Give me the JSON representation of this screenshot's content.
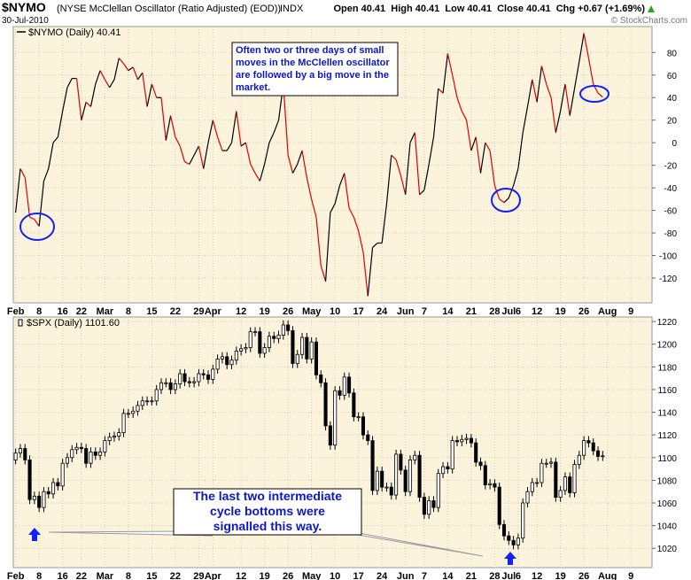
{
  "header": {
    "symbol": "$NYMO",
    "description": "(NYSE McClellan Oscillator (Ratio Adjusted) (EOD))",
    "exchange": "INDX",
    "date": "30-Jul-2010",
    "quote": "Open 40.41  High 40.41  Low 40.41  Close 40.41  Chg +0.67 (+1.69%)",
    "credit": "© StockCharts.com"
  },
  "chart_data": [
    {
      "type": "line",
      "legend": "top-left",
      "grid": true,
      "categories": [
        "Feb",
        null,
        null,
        null,
        null,
        "8",
        null,
        null,
        null,
        null,
        "16",
        null,
        null,
        null,
        "22",
        null,
        null,
        null,
        null,
        "Mar",
        null,
        null,
        null,
        null,
        "8",
        null,
        null,
        null,
        null,
        "15",
        null,
        null,
        null,
        null,
        "22",
        null,
        null,
        null,
        null,
        "29",
        null,
        null,
        "Apr",
        null,
        null,
        null,
        null,
        null,
        "12",
        null,
        null,
        null,
        null,
        "19",
        null,
        null,
        null,
        null,
        "26",
        null,
        null,
        null,
        null,
        "May",
        null,
        null,
        null,
        null,
        "10",
        null,
        null,
        null,
        null,
        "17",
        null,
        null,
        null,
        null,
        "24",
        null,
        null,
        null,
        null,
        "Jun",
        null,
        null,
        null,
        "7",
        null,
        null,
        null,
        null,
        "14",
        null,
        null,
        null,
        null,
        "21",
        null,
        null,
        null,
        null,
        "28",
        null,
        null,
        "Jul",
        null,
        "6",
        null,
        null,
        null,
        "12",
        null,
        null,
        null,
        null,
        "19",
        null,
        null,
        null,
        null,
        "26",
        null,
        null,
        null,
        null,
        "Aug",
        null,
        null,
        null,
        null,
        "9",
        null,
        null,
        null,
        null
      ],
      "series": [
        {
          "name": "$NYMO (Daily) 40.41",
          "up_color": "#000000",
          "down_color": "#e00000",
          "values": [
            -62,
            -23,
            -31,
            -66,
            -68,
            -74,
            -34,
            -23,
            0,
            5,
            28,
            49,
            57,
            57,
            20,
            36,
            32,
            52,
            64,
            56,
            49,
            56,
            75,
            70,
            64,
            67,
            56,
            62,
            32,
            52,
            40,
            40,
            2,
            24,
            5,
            -3,
            -17,
            -19,
            -11,
            -3,
            -23,
            0,
            20,
            5,
            -7,
            -7,
            0,
            28,
            -3,
            0,
            -19,
            -27,
            -34,
            -19,
            0,
            9,
            20,
            52,
            -11,
            -27,
            -19,
            -7,
            -31,
            -50,
            -66,
            -109,
            -123,
            -62,
            -54,
            -38,
            -27,
            -58,
            -66,
            -78,
            -97,
            -136,
            -93,
            -89,
            -89,
            -54,
            -11,
            -15,
            -29,
            -46,
            0,
            9,
            -46,
            -42,
            -19,
            5,
            48,
            44,
            79,
            60,
            40,
            28,
            20,
            -7,
            5,
            -27,
            0,
            -7,
            -38,
            -50,
            -53,
            -49,
            -38,
            -23,
            9,
            32,
            56,
            36,
            68,
            52,
            40,
            9,
            28,
            52,
            24,
            48,
            72,
            97,
            75,
            52,
            44,
            40.41,
            null,
            null,
            null,
            null,
            null,
            null,
            null,
            null,
            null,
            null
          ]
        }
      ],
      "ylim": [
        -142,
        103
      ],
      "yticks": [
        -120,
        -100,
        -80,
        -60,
        -40,
        -20,
        0,
        20,
        40,
        60,
        80
      ],
      "annotation": [
        "Often two or three days of small",
        "moves in the McClellen oscillator",
        "are followed by a big move in the",
        "market."
      ]
    },
    {
      "type": "candlestick",
      "legend": "top-left",
      "grid": true,
      "categories": [
        "Feb",
        null,
        null,
        null,
        null,
        "8",
        null,
        null,
        null,
        null,
        "16",
        null,
        null,
        null,
        "22",
        null,
        null,
        null,
        null,
        "Mar",
        null,
        null,
        null,
        null,
        "8",
        null,
        null,
        null,
        null,
        "15",
        null,
        null,
        null,
        null,
        "22",
        null,
        null,
        null,
        null,
        "29",
        null,
        null,
        "Apr",
        null,
        null,
        null,
        null,
        null,
        "12",
        null,
        null,
        null,
        null,
        "19",
        null,
        null,
        null,
        null,
        "26",
        null,
        null,
        null,
        null,
        "May",
        null,
        null,
        null,
        null,
        "10",
        null,
        null,
        null,
        null,
        "17",
        null,
        null,
        null,
        null,
        "24",
        null,
        null,
        null,
        null,
        "Jun",
        null,
        null,
        null,
        "7",
        null,
        null,
        null,
        null,
        "14",
        null,
        null,
        null,
        null,
        "21",
        null,
        null,
        null,
        null,
        "28",
        null,
        null,
        "Jul",
        null,
        "6",
        null,
        null,
        null,
        "12",
        null,
        null,
        null,
        null,
        "19",
        null,
        null,
        null,
        null,
        "26",
        null,
        null,
        null,
        null,
        "Aug",
        null,
        null,
        null,
        null,
        "9",
        null,
        null,
        null,
        null
      ],
      "name": "$SPX (Daily) 1101.60",
      "up_color": "#ffffff",
      "down_color": "#000000",
      "open": [
        1098,
        1104,
        1108,
        1098,
        1063,
        1066,
        1056,
        1070,
        1068,
        1078,
        1075,
        1095,
        1100,
        1107,
        1109,
        1108,
        1095,
        1105,
        1102,
        1105,
        1115,
        1118,
        1119,
        1122,
        1139,
        1139,
        1141,
        1146,
        1150,
        1150,
        1150,
        1160,
        1166,
        1166,
        1160,
        1165,
        1174,
        1167,
        1166,
        1167,
        1174,
        1173,
        1169,
        1178,
        1187,
        1189,
        1182,
        1186,
        1194,
        1196,
        1197,
        1211,
        1211,
        1192,
        1197,
        1207,
        1205,
        1208,
        1217,
        1212,
        1183,
        1191,
        1206,
        1187,
        1202,
        1173,
        1166,
        1128,
        1111,
        1159,
        1155,
        1171,
        1157,
        1136,
        1136,
        1120,
        1115,
        1071,
        1088,
        1074,
        1074,
        1067,
        1103,
        1089,
        1070,
        1098,
        1102,
        1065,
        1050,
        1062,
        1056,
        1086,
        1092,
        1090,
        1115,
        1114,
        1116,
        1117,
        1113,
        1096,
        1093,
        1076,
        1077,
        1074,
        1041,
        1031,
        1027,
        1023,
        1029,
        1060,
        1070,
        1078,
        1078,
        1095,
        1095,
        1096,
        1065,
        1071,
        1083,
        1069,
        1094,
        1102,
        1115,
        1113,
        1106,
        1101,
        null,
        null,
        null,
        null,
        null,
        null,
        null,
        null,
        null,
        null
      ],
      "high": [
        1108,
        1112,
        1112,
        1102,
        1070,
        1070,
        1074,
        1074,
        1082,
        1082,
        1099,
        1104,
        1111,
        1113,
        1113,
        1112,
        1109,
        1109,
        1109,
        1119,
        1122,
        1123,
        1126,
        1143,
        1143,
        1145,
        1150,
        1154,
        1154,
        1154,
        1164,
        1170,
        1170,
        1170,
        1169,
        1178,
        1178,
        1171,
        1171,
        1178,
        1178,
        1177,
        1182,
        1191,
        1193,
        1193,
        1190,
        1198,
        1200,
        1201,
        1215,
        1215,
        1215,
        1201,
        1211,
        1211,
        1212,
        1221,
        1221,
        1216,
        1195,
        1210,
        1210,
        1206,
        1206,
        1177,
        1170,
        1132,
        1163,
        1163,
        1175,
        1175,
        1161,
        1140,
        1140,
        1124,
        1119,
        1092,
        1092,
        1078,
        1078,
        1107,
        1107,
        1093,
        1102,
        1106,
        1106,
        1069,
        1066,
        1066,
        1090,
        1096,
        1096,
        1119,
        1119,
        1120,
        1121,
        1121,
        1117,
        1100,
        1097,
        1081,
        1081,
        1078,
        1045,
        1035,
        1031,
        1033,
        1064,
        1074,
        1082,
        1082,
        1099,
        1099,
        1100,
        1100,
        1075,
        1087,
        1087,
        1098,
        1106,
        1119,
        1119,
        1117,
        1110,
        1106,
        null,
        null,
        null,
        null,
        null,
        null,
        null,
        null,
        null,
        null
      ],
      "low": [
        1094,
        1100,
        1094,
        1059,
        1059,
        1052,
        1052,
        1064,
        1064,
        1071,
        1071,
        1091,
        1096,
        1103,
        1104,
        1091,
        1091,
        1098,
        1098,
        1101,
        1111,
        1114,
        1115,
        1118,
        1135,
        1135,
        1137,
        1142,
        1146,
        1146,
        1146,
        1156,
        1162,
        1156,
        1156,
        1161,
        1163,
        1162,
        1162,
        1163,
        1169,
        1165,
        1165,
        1174,
        1183,
        1178,
        1178,
        1182,
        1190,
        1192,
        1193,
        1207,
        1188,
        1188,
        1193,
        1201,
        1201,
        1204,
        1208,
        1179,
        1179,
        1187,
        1183,
        1183,
        1169,
        1162,
        1124,
        1107,
        1107,
        1151,
        1151,
        1153,
        1132,
        1132,
        1116,
        1111,
        1067,
        1067,
        1070,
        1070,
        1063,
        1063,
        1085,
        1066,
        1066,
        1094,
        1061,
        1046,
        1046,
        1052,
        1052,
        1082,
        1086,
        1086,
        1110,
        1110,
        1112,
        1109,
        1092,
        1089,
        1072,
        1072,
        1070,
        1037,
        1027,
        1023,
        1019,
        1019,
        1025,
        1056,
        1066,
        1074,
        1074,
        1091,
        1091,
        1061,
        1061,
        1067,
        1065,
        1065,
        1090,
        1098,
        1109,
        1102,
        1097,
        1097,
        null,
        null,
        null,
        null,
        null,
        null,
        null,
        null,
        null,
        null
      ],
      "close": [
        1104,
        1108,
        1098,
        1063,
        1066,
        1056,
        1070,
        1068,
        1078,
        1075,
        1095,
        1100,
        1107,
        1109,
        1108,
        1095,
        1105,
        1102,
        1105,
        1115,
        1118,
        1119,
        1122,
        1139,
        1139,
        1141,
        1146,
        1150,
        1150,
        1150,
        1160,
        1166,
        1166,
        1160,
        1165,
        1174,
        1167,
        1166,
        1167,
        1174,
        1173,
        1169,
        1178,
        1187,
        1189,
        1182,
        1186,
        1194,
        1196,
        1197,
        1211,
        1211,
        1192,
        1197,
        1207,
        1205,
        1208,
        1217,
        1212,
        1183,
        1191,
        1206,
        1187,
        1202,
        1173,
        1166,
        1128,
        1111,
        1159,
        1155,
        1171,
        1157,
        1136,
        1136,
        1120,
        1115,
        1071,
        1088,
        1074,
        1074,
        1067,
        1103,
        1089,
        1070,
        1098,
        1102,
        1065,
        1050,
        1062,
        1056,
        1086,
        1092,
        1090,
        1115,
        1114,
        1116,
        1117,
        1113,
        1096,
        1093,
        1076,
        1077,
        1074,
        1041,
        1031,
        1027,
        1023,
        1029,
        1060,
        1070,
        1078,
        1078,
        1095,
        1095,
        1096,
        1065,
        1071,
        1083,
        1069,
        1094,
        1102,
        1115,
        1113,
        1106,
        1101,
        1101.6,
        null,
        null,
        null,
        null,
        null,
        null,
        null,
        null,
        null,
        null
      ],
      "ylim": [
        1003,
        1224
      ],
      "yticks": [
        1020,
        1040,
        1060,
        1080,
        1100,
        1120,
        1140,
        1160,
        1180,
        1200,
        1220
      ],
      "annotation": [
        "The last two intermediate",
        "cycle bottoms were",
        "signalled this way."
      ]
    }
  ]
}
